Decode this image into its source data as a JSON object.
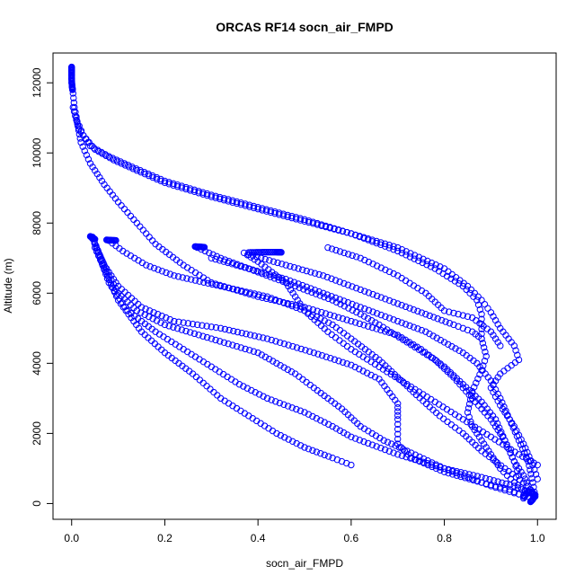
{
  "chart_data": {
    "type": "scatter",
    "title": "ORCAS RF14 socn_air_FMPD",
    "xlabel": "socn_air_FMPD",
    "ylabel": "Altitude (m)",
    "xlim": [
      -0.04,
      1.04
    ],
    "ylim": [
      -450,
      12850
    ],
    "xticks": [
      "0.0",
      "0.2",
      "0.4",
      "0.6",
      "0.8",
      "1.0"
    ],
    "yticks": [
      "0",
      "2000",
      "4000",
      "6000",
      "8000",
      "10000",
      "12000"
    ],
    "xtick_values": [
      0.0,
      0.2,
      0.4,
      0.6,
      0.8,
      1.0
    ],
    "ytick_values": [
      0,
      2000,
      4000,
      6000,
      8000,
      10000,
      12000
    ],
    "grid": false,
    "marker": "open-circle",
    "point_color": "#0000ff",
    "series": [
      {
        "segments": [
          [
            [
              0.0,
              12450
            ],
            [
              0.0,
              12000
            ],
            [
              0.003,
              11700
            ],
            [
              0.006,
              11300
            ],
            [
              0.012,
              10900
            ],
            [
              0.025,
              10500
            ],
            [
              0.05,
              10100
            ],
            [
              0.09,
              9800
            ],
            [
              0.14,
              9500
            ],
            [
              0.2,
              9150
            ],
            [
              0.3,
              8750
            ],
            [
              0.4,
              8400
            ],
            [
              0.5,
              8050
            ],
            [
              0.6,
              7700
            ],
            [
              0.7,
              7200
            ],
            [
              0.78,
              6700
            ],
            [
              0.84,
              6200
            ],
            [
              0.87,
              5800
            ],
            [
              0.88,
              5400
            ],
            [
              0.88,
              4700
            ]
          ],
          [
            [
              0.003,
              11300
            ],
            [
              0.015,
              10700
            ],
            [
              0.04,
              10200
            ],
            [
              0.08,
              9900
            ],
            [
              0.13,
              9600
            ],
            [
              0.2,
              9200
            ],
            [
              0.3,
              8800
            ],
            [
              0.4,
              8450
            ],
            [
              0.5,
              8100
            ],
            [
              0.6,
              7700
            ],
            [
              0.7,
              7300
            ],
            [
              0.8,
              6700
            ],
            [
              0.85,
              6200
            ],
            [
              0.88,
              5800
            ],
            [
              0.9,
              5450
            ],
            [
              0.92,
              5000
            ],
            [
              0.95,
              4500
            ],
            [
              0.96,
              4100
            ],
            [
              0.92,
              3700
            ],
            [
              0.9,
              3300
            ],
            [
              0.92,
              2800
            ],
            [
              0.95,
              2200
            ],
            [
              0.97,
              1700
            ],
            [
              0.99,
              1100
            ],
            [
              1.0,
              700
            ]
          ],
          [
            [
              0.01,
              11000
            ],
            [
              0.02,
              10300
            ],
            [
              0.04,
              9700
            ],
            [
              0.07,
              9100
            ],
            [
              0.1,
              8600
            ],
            [
              0.14,
              8000
            ],
            [
              0.18,
              7400
            ],
            [
              0.24,
              6800
            ],
            [
              0.3,
              6300
            ],
            [
              0.4,
              5900
            ],
            [
              0.5,
              5600
            ],
            [
              0.6,
              5200
            ],
            [
              0.7,
              4800
            ],
            [
              0.75,
              4400
            ],
            [
              0.8,
              3900
            ],
            [
              0.84,
              3400
            ],
            [
              0.88,
              2900
            ],
            [
              0.91,
              2400
            ],
            [
              0.93,
              1800
            ],
            [
              0.95,
              1200
            ],
            [
              0.97,
              800
            ],
            [
              0.98,
              500
            ],
            [
              0.99,
              300
            ]
          ],
          [
            [
              0.045,
              7600
            ],
            [
              0.06,
              7100
            ],
            [
              0.08,
              6500
            ],
            [
              0.1,
              6000
            ],
            [
              0.14,
              5500
            ],
            [
              0.2,
              5100
            ],
            [
              0.3,
              4700
            ],
            [
              0.4,
              4300
            ],
            [
              0.48,
              3700
            ],
            [
              0.52,
              3300
            ],
            [
              0.58,
              2700
            ],
            [
              0.62,
              2200
            ],
            [
              0.67,
              1800
            ],
            [
              0.72,
              1500
            ],
            [
              0.8,
              1000
            ],
            [
              0.86,
              700
            ],
            [
              0.9,
              500
            ],
            [
              0.95,
              300
            ],
            [
              0.98,
              200
            ]
          ],
          [
            [
              0.045,
              7550
            ],
            [
              0.07,
              6800
            ],
            [
              0.1,
              6200
            ],
            [
              0.15,
              5600
            ],
            [
              0.22,
              5200
            ],
            [
              0.32,
              5000
            ],
            [
              0.42,
              4700
            ],
            [
              0.52,
              4300
            ],
            [
              0.6,
              3950
            ],
            [
              0.66,
              3550
            ],
            [
              0.7,
              2850
            ],
            [
              0.7,
              2400
            ],
            [
              0.7,
              1700
            ],
            [
              0.73,
              1300
            ],
            [
              0.8,
              900
            ],
            [
              0.88,
              600
            ],
            [
              0.94,
              400
            ],
            [
              0.97,
              200
            ]
          ],
          [
            [
              0.05,
              7400
            ],
            [
              0.08,
              6300
            ],
            [
              0.12,
              5500
            ],
            [
              0.18,
              4900
            ],
            [
              0.24,
              4400
            ],
            [
              0.3,
              3900
            ],
            [
              0.36,
              3400
            ],
            [
              0.42,
              3000
            ],
            [
              0.5,
              2600
            ],
            [
              0.56,
              2200
            ],
            [
              0.6,
              1900
            ],
            [
              0.7,
              1400
            ],
            [
              0.8,
              1000
            ],
            [
              0.88,
              750
            ],
            [
              0.95,
              500
            ],
            [
              0.99,
              250
            ]
          ],
          [
            [
              0.05,
              7300
            ],
            [
              0.1,
              5800
            ],
            [
              0.15,
              4900
            ],
            [
              0.2,
              4300
            ],
            [
              0.26,
              3700
            ],
            [
              0.32,
              3000
            ],
            [
              0.38,
              2500
            ],
            [
              0.44,
              2000
            ],
            [
              0.5,
              1600
            ],
            [
              0.56,
              1300
            ],
            [
              0.6,
              1100
            ]
          ],
          [
            [
              0.08,
              7500
            ],
            [
              0.11,
              7200
            ],
            [
              0.16,
              6800
            ],
            [
              0.22,
              6500
            ],
            [
              0.32,
              6200
            ],
            [
              0.42,
              5900
            ],
            [
              0.5,
              5500
            ],
            [
              0.56,
              5100
            ],
            [
              0.6,
              4700
            ],
            [
              0.66,
              4100
            ],
            [
              0.7,
              3600
            ],
            [
              0.74,
              3100
            ],
            [
              0.79,
              2500
            ],
            [
              0.84,
              2000
            ],
            [
              0.88,
              1500
            ],
            [
              0.93,
              1000
            ],
            [
              0.97,
              600
            ],
            [
              0.99,
              300
            ]
          ],
          [
            [
              0.27,
              7300
            ],
            [
              0.32,
              7000
            ],
            [
              0.4,
              6600
            ],
            [
              0.48,
              6200
            ],
            [
              0.56,
              5800
            ],
            [
              0.62,
              5400
            ],
            [
              0.66,
              5100
            ],
            [
              0.72,
              4600
            ],
            [
              0.78,
              4100
            ],
            [
              0.82,
              3600
            ],
            [
              0.86,
              3000
            ],
            [
              0.9,
              2400
            ],
            [
              0.93,
              1800
            ],
            [
              0.95,
              1200
            ],
            [
              0.96,
              800
            ]
          ],
          [
            [
              0.37,
              7150
            ],
            [
              0.4,
              6900
            ],
            [
              0.43,
              6600
            ],
            [
              0.46,
              6300
            ],
            [
              0.48,
              5900
            ],
            [
              0.5,
              5500
            ],
            [
              0.55,
              4900
            ],
            [
              0.6,
              4400
            ],
            [
              0.66,
              3900
            ],
            [
              0.72,
              3400
            ],
            [
              0.78,
              2900
            ],
            [
              0.84,
              2400
            ],
            [
              0.9,
              1900
            ],
            [
              0.96,
              1400
            ],
            [
              1.0,
              1100
            ]
          ],
          [
            [
              0.38,
              7100
            ],
            [
              0.46,
              6800
            ],
            [
              0.54,
              6500
            ],
            [
              0.62,
              6100
            ],
            [
              0.7,
              5700
            ],
            [
              0.76,
              5400
            ],
            [
              0.82,
              5100
            ],
            [
              0.86,
              4900
            ],
            [
              0.88,
              4700
            ],
            [
              0.89,
              4200
            ],
            [
              0.88,
              3800
            ],
            [
              0.86,
              3200
            ],
            [
              0.85,
              2600
            ],
            [
              0.86,
              2200
            ],
            [
              0.88,
              1800
            ],
            [
              0.9,
              1400
            ],
            [
              0.92,
              1000
            ],
            [
              0.95,
              600
            ],
            [
              0.98,
              300
            ]
          ],
          [
            [
              0.3,
              7000
            ],
            [
              0.38,
              6700
            ],
            [
              0.46,
              6400
            ],
            [
              0.54,
              6000
            ],
            [
              0.62,
              5600
            ],
            [
              0.7,
              5200
            ],
            [
              0.76,
              4900
            ],
            [
              0.8,
              4600
            ],
            [
              0.84,
              4300
            ],
            [
              0.87,
              4000
            ],
            [
              0.9,
              3500
            ],
            [
              0.92,
              3000
            ],
            [
              0.94,
              2400
            ],
            [
              0.96,
              1800
            ],
            [
              0.98,
              1200
            ],
            [
              0.99,
              600
            ],
            [
              0.995,
              200
            ]
          ],
          [
            [
              0.55,
              7300
            ],
            [
              0.62,
              7000
            ],
            [
              0.7,
              6500
            ],
            [
              0.76,
              6000
            ],
            [
              0.8,
              5500
            ],
            [
              0.86,
              5300
            ],
            [
              0.9,
              4900
            ],
            [
              0.92,
              4500
            ]
          ]
        ],
        "clusters": [
          [
            [
              0.0,
              12450
            ],
            [
              0.0,
              12300
            ],
            [
              0.0,
              12100
            ],
            [
              0.001,
              11900
            ],
            [
              0.002,
              11800
            ]
          ],
          [
            [
              0.04,
              7620
            ],
            [
              0.045,
              7580
            ],
            [
              0.05,
              7540
            ]
          ],
          [
            [
              0.075,
              7520
            ],
            [
              0.085,
              7510
            ],
            [
              0.095,
              7505
            ]
          ],
          [
            [
              0.265,
              7330
            ],
            [
              0.275,
              7320
            ],
            [
              0.285,
              7310
            ]
          ],
          [
            [
              0.38,
              7160
            ],
            [
              0.4,
              7165
            ],
            [
              0.42,
              7170
            ],
            [
              0.44,
              7170
            ],
            [
              0.45,
              7165
            ]
          ],
          [
            [
              0.985,
              50
            ],
            [
              0.99,
              120
            ],
            [
              0.995,
              250
            ],
            [
              0.98,
              350
            ],
            [
              0.97,
              150
            ]
          ]
        ]
      }
    ]
  }
}
